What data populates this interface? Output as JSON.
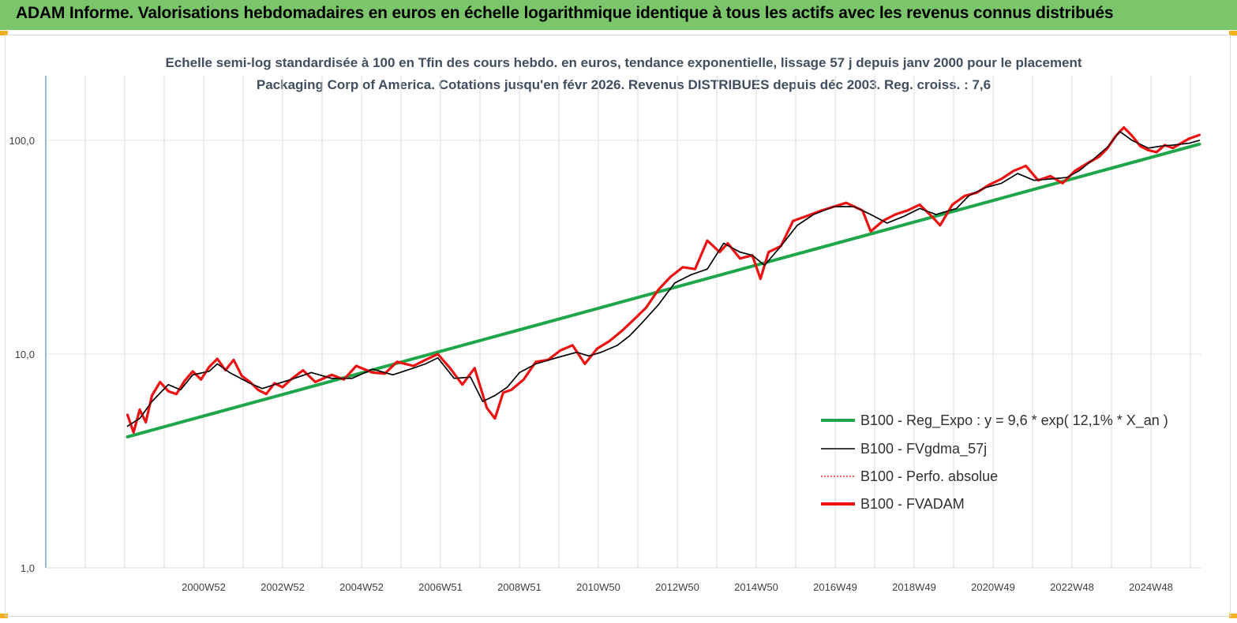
{
  "header": {
    "title": "ADAM Informe. Valorisations hebdomadaires en euros en échelle logarithmique identique à tous les actifs avec les revenus connus distribués"
  },
  "chart_data": {
    "type": "line",
    "title": "Echelle semi-log standardisée à 100 en Tfin des cours hebdo. en euros, tendance exponentielle, lissage 57 j depuis janv 2000 pour le placement Packaging Corp of America.  Cotations jusqu'en févr 2026. Revenus DISTRIBUES depuis déc 2003. Reg. croiss. : 7,6",
    "xlabel": "",
    "ylabel": "",
    "y_scale": "log",
    "ylim": [
      1,
      190
    ],
    "xlim": [
      1998.0,
      2026.3
    ],
    "yticks": [
      "1,0",
      "10,0",
      "100,0"
    ],
    "xticks": [
      "2000W52",
      "2002W52",
      "2004W52",
      "2006W51",
      "2008W51",
      "2010W50",
      "2012W50",
      "2014W50",
      "2016W49",
      "2018W49",
      "2020W49",
      "2022W48",
      "2024W48"
    ],
    "grid": "vertical",
    "legend_position": "right",
    "series": [
      {
        "name": "B100 - Reg_Expo : y = 9,6 * exp( 12,1% *  X_an )",
        "color": "#1fa64a",
        "style": "solid-thick",
        "x": [
          2000.0,
          2026.25
        ],
        "y": [
          4.1,
          96
        ]
      },
      {
        "name": "B100 - FVgdma_57j",
        "color": "#000000",
        "style": "solid-thin",
        "x": [
          2000.0,
          2000.3,
          2000.6,
          2001.0,
          2001.3,
          2001.6,
          2002.0,
          2002.2,
          2002.5,
          2003.0,
          2003.3,
          2003.6,
          2004.0,
          2004.5,
          2005.0,
          2005.5,
          2006.0,
          2006.5,
          2007.0,
          2007.3,
          2007.6,
          2008.0,
          2008.4,
          2008.7,
          2009.0,
          2009.3,
          2009.6,
          2010.0,
          2010.5,
          2011.0,
          2011.3,
          2011.6,
          2012.0,
          2012.3,
          2012.6,
          2013.0,
          2013.4,
          2013.8,
          2014.2,
          2014.6,
          2015.0,
          2015.3,
          2015.6,
          2016.0,
          2016.4,
          2016.8,
          2017.3,
          2017.8,
          2018.2,
          2018.6,
          2019.0,
          2019.4,
          2019.8,
          2020.3,
          2020.6,
          2021.0,
          2021.4,
          2021.8,
          2022.2,
          2022.6,
          2023.0,
          2023.3,
          2023.6,
          2024.0,
          2024.3,
          2024.6,
          2025.0,
          2025.3,
          2025.6,
          2026.0,
          2026.25
        ],
        "y": [
          4.6,
          5.0,
          6.0,
          7.2,
          6.8,
          8.0,
          8.3,
          9.0,
          8.2,
          7.3,
          6.9,
          7.2,
          7.6,
          8.2,
          7.7,
          7.7,
          8.5,
          8.0,
          8.6,
          9.0,
          9.6,
          7.7,
          7.8,
          6.0,
          6.4,
          7.0,
          8.2,
          9.0,
          9.6,
          10.2,
          9.8,
          10.2,
          11.0,
          12.2,
          14.0,
          17.0,
          21.5,
          23.5,
          25.0,
          33.0,
          30.0,
          29.0,
          26.0,
          32.0,
          40.0,
          45.0,
          49.0,
          49.0,
          45.0,
          41.0,
          44.0,
          48.0,
          45.0,
          48.0,
          55.0,
          60.0,
          63.0,
          70.0,
          65.0,
          66.0,
          67.0,
          72.0,
          80.0,
          93.0,
          110.0,
          100.0,
          92.0,
          94.0,
          95.0,
          97.0,
          100.0
        ]
      },
      {
        "name": "B100 - Perfo. absolue",
        "color": "#d9302c",
        "style": "dotted",
        "x": [],
        "y": []
      },
      {
        "name": "B100 - FVADAM",
        "color": "#ee1111",
        "style": "solid-thick",
        "x": [
          2000.0,
          2000.15,
          2000.3,
          2000.45,
          2000.6,
          2000.8,
          2001.0,
          2001.2,
          2001.4,
          2001.6,
          2001.8,
          2002.0,
          2002.2,
          2002.4,
          2002.6,
          2002.8,
          2003.0,
          2003.2,
          2003.4,
          2003.6,
          2003.8,
          2004.0,
          2004.3,
          2004.6,
          2005.0,
          2005.3,
          2005.6,
          2006.0,
          2006.3,
          2006.6,
          2007.0,
          2007.3,
          2007.6,
          2007.9,
          2008.2,
          2008.5,
          2008.8,
          2009.0,
          2009.2,
          2009.4,
          2009.7,
          2010.0,
          2010.3,
          2010.6,
          2010.9,
          2011.2,
          2011.5,
          2011.8,
          2012.1,
          2012.4,
          2012.7,
          2013.0,
          2013.3,
          2013.6,
          2013.9,
          2014.2,
          2014.5,
          2014.7,
          2015.0,
          2015.3,
          2015.5,
          2015.7,
          2016.0,
          2016.3,
          2016.6,
          2017.0,
          2017.3,
          2017.6,
          2018.0,
          2018.2,
          2018.5,
          2018.8,
          2019.1,
          2019.4,
          2019.7,
          2019.9,
          2020.2,
          2020.5,
          2020.8,
          2021.1,
          2021.4,
          2021.7,
          2022.0,
          2022.3,
          2022.6,
          2022.9,
          2023.2,
          2023.5,
          2023.8,
          2024.0,
          2024.2,
          2024.4,
          2024.6,
          2024.8,
          2025.0,
          2025.2,
          2025.4,
          2025.6,
          2025.8,
          2026.0,
          2026.25
        ],
        "y": [
          5.2,
          4.3,
          5.5,
          4.8,
          6.4,
          7.4,
          6.7,
          6.5,
          7.5,
          8.3,
          7.6,
          8.7,
          9.5,
          8.4,
          9.4,
          7.9,
          7.4,
          6.8,
          6.5,
          7.3,
          7.0,
          7.6,
          8.4,
          7.4,
          8.0,
          7.6,
          8.8,
          8.2,
          8.1,
          9.2,
          8.8,
          9.4,
          10.0,
          8.6,
          7.2,
          8.6,
          5.6,
          5.0,
          6.6,
          6.8,
          7.6,
          9.2,
          9.4,
          10.4,
          11.0,
          9.0,
          10.6,
          11.5,
          12.8,
          14.5,
          16.5,
          20.0,
          23.0,
          25.5,
          25.0,
          34.0,
          30.0,
          33.0,
          28.0,
          29.0,
          22.5,
          30.0,
          32.0,
          42.0,
          44.0,
          47.0,
          49.0,
          51.0,
          47.0,
          37.5,
          42.0,
          45.0,
          47.0,
          50.0,
          44.0,
          40.0,
          50.0,
          55.0,
          57.0,
          62.0,
          66.0,
          72.0,
          76.0,
          65.0,
          68.0,
          63.0,
          72.0,
          78.0,
          84.0,
          92.0,
          105.0,
          115.0,
          105.0,
          94.0,
          90.0,
          88.0,
          95.0,
          92.0,
          97.0,
          102.0,
          106.0
        ]
      }
    ]
  }
}
